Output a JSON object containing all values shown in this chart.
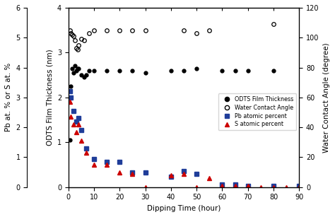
{
  "xlabel": "Dipping Time (hour)",
  "ylabel_inner_left": "ODTS Film Thickness (nm)",
  "ylabel_outer_left": "Pb at. % or S at. %",
  "ylabel_right": "Water Contact Angle (degree)",
  "xlim": [
    0,
    90
  ],
  "ylim_inner": [
    0,
    4
  ],
  "ylim_outer": [
    0,
    6
  ],
  "ylim_right": [
    0,
    120
  ],
  "xticks": [
    0,
    10,
    20,
    30,
    40,
    50,
    60,
    70,
    80,
    90
  ],
  "yticks_inner": [
    0,
    1,
    2,
    3,
    4
  ],
  "yticks_outer": [
    0,
    1,
    2,
    3,
    4,
    5,
    6
  ],
  "yticks_right": [
    0,
    20,
    40,
    60,
    80,
    100,
    120
  ],
  "odts_x": [
    0.5,
    1,
    1.5,
    2,
    2.5,
    3,
    3.5,
    4,
    5,
    6,
    7,
    8,
    10,
    15,
    20,
    25,
    30,
    40,
    45,
    50,
    60,
    65,
    70,
    80
  ],
  "odts_y": [
    1.05,
    2.25,
    2.65,
    2.55,
    2.7,
    2.6,
    2.65,
    2.65,
    2.5,
    2.45,
    2.5,
    2.6,
    2.6,
    2.6,
    2.6,
    2.6,
    2.55,
    2.6,
    2.6,
    2.65,
    2.6,
    2.6,
    2.6,
    2.6
  ],
  "wca_x": [
    0.5,
    1,
    1.5,
    2,
    2.5,
    3,
    3.5,
    4,
    5,
    6,
    8,
    10,
    15,
    20,
    25,
    30,
    45,
    50,
    55,
    80
  ],
  "wca_degree": [
    105,
    103,
    102,
    101,
    98,
    93,
    92,
    95,
    99,
    98,
    103,
    105,
    105,
    105,
    105,
    105,
    105,
    103,
    105,
    109
  ],
  "pb_x": [
    0.5,
    1,
    2,
    3,
    4,
    5,
    7,
    10,
    15,
    20,
    25,
    30,
    40,
    45,
    50,
    60,
    65,
    70,
    80,
    90
  ],
  "pb_y": [
    3.2,
    3.0,
    2.55,
    2.2,
    2.3,
    1.9,
    1.3,
    0.95,
    0.85,
    0.85,
    0.5,
    0.5,
    0.35,
    0.55,
    0.45,
    0.1,
    0.1,
    0.05,
    0.05,
    0.05
  ],
  "s_x": [
    0.5,
    1,
    2,
    3,
    4,
    5,
    7,
    10,
    15,
    20,
    25,
    30,
    40,
    45,
    50,
    55,
    60,
    65,
    70,
    75,
    80,
    85,
    90
  ],
  "s_y": [
    2.85,
    2.35,
    2.1,
    1.85,
    2.1,
    1.55,
    1.15,
    0.75,
    0.75,
    0.5,
    0.45,
    0.0,
    0.4,
    0.45,
    0.0,
    0.3,
    0.05,
    0.05,
    0.05,
    0.0,
    0.0,
    0.0,
    0.0
  ],
  "odts_color": "#000000",
  "wca_color": "#000000",
  "pb_color": "#1f3d99",
  "s_color": "#cc0000",
  "fontsize": 7.5,
  "tick_fontsize": 7
}
